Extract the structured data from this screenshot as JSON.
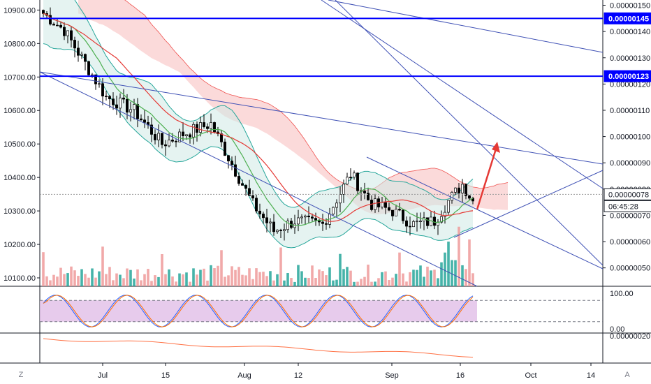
{
  "chart_data": [
    {
      "type": "candlestick",
      "left_axis_ticks": [
        "10900.00",
        "10800.00",
        "10700.00",
        "10600.00",
        "10500.00",
        "10400.00",
        "10300.00",
        "10200.00",
        "10100.00"
      ],
      "right_axis_ticks": [
        "0.00000150",
        "0.00000140",
        "0.00000130",
        "0.00000120",
        "0.00000110",
        "0.00000100",
        "0.00000090",
        "0.00000080",
        "0.00000070",
        "0.00000060",
        "0.00000050"
      ],
      "price_tags": [
        {
          "label": "0.00000145",
          "color": "#0000ff",
          "type": "horizontal-line"
        },
        {
          "label": "0.00000123",
          "color": "#0000ff",
          "type": "horizontal-line"
        },
        {
          "label": "0.00000078",
          "color": "#131722",
          "type": "last-price"
        },
        {
          "label": "06:45:28",
          "color": "#131722",
          "type": "countdown"
        }
      ],
      "x_tick_labels": [
        "Jul",
        "15",
        "Aug",
        "12",
        "Sep",
        "16",
        "Oct",
        "14"
      ],
      "left_ylim": [
        10075,
        10930
      ],
      "right_ylim": [
        4.3e-07,
        1.52e-06
      ],
      "candle_colors": {
        "up": "#ffffff",
        "down": "#000000",
        "outline": "#000000"
      },
      "indicator_colors": {
        "sma_fast": "#4caf50",
        "sma_slow": "#e53935",
        "bollinger": "#26a69a",
        "cloud_bear": "#f8bbbb",
        "cloud_bull": "#cfe9e6",
        "trendline": "#3f51b5",
        "arrow": "#e53935"
      },
      "volume_colors": {
        "up": "#26a69a",
        "down": "#ef9a9a"
      }
    },
    {
      "type": "line",
      "name": "stochastic",
      "right_axis_ticks": [
        "100.00",
        "0.00"
      ],
      "band": [
        20,
        80
      ],
      "band_color": "#e1bee7",
      "colors": {
        "k": "#2962ff",
        "d": "#ff6d00"
      }
    },
    {
      "type": "line",
      "right_axis_ticks": [
        "0.00000020"
      ],
      "color": "#ff7043"
    }
  ],
  "ui": {
    "bottom_left_button": "Z",
    "bottom_right_button": "A"
  }
}
